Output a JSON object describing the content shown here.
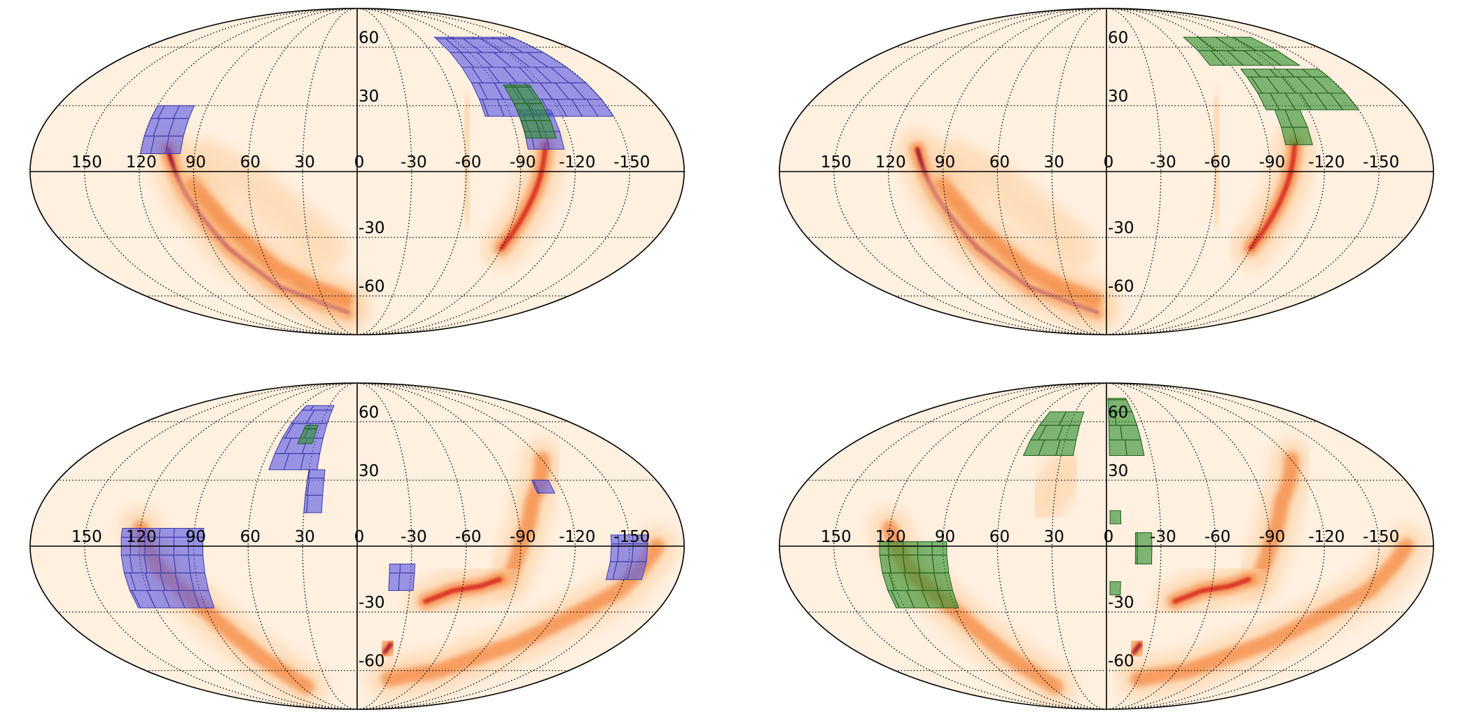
{
  "colors": {
    "background": "#fff0e0",
    "blue_tiles": "#5a5ae6",
    "green_tiles": "#2f8f2f",
    "heat_low": "#fdd0a2",
    "heat_mid": "#f16913",
    "heat_high": "#d7261e",
    "heat_peak": "#3b0a5c"
  },
  "projection": "mollweide",
  "longitude_direction": "increasing-left",
  "panels": [
    {
      "id": "top-left",
      "lon_labels": [
        "150",
        "120",
        "90",
        "60",
        "30",
        "0",
        "-30",
        "-60",
        "-90",
        "-120",
        "-150"
      ],
      "lat_labels": [
        "60",
        "30",
        "-30",
        "-60"
      ],
      "tile_sets": [
        {
          "color": "blue",
          "regions": [
            {
              "lon": [
                98,
                120
              ],
              "lat": [
                8,
                30
              ]
            },
            {
              "lon": [
                -75,
                -150
              ],
              "lat": [
                25,
                66
              ]
            },
            {
              "lon": [
                -95,
                -115
              ],
              "lat": [
                10,
                28
              ]
            }
          ]
        },
        {
          "color": "green",
          "regions": [
            {
              "lon": [
                -95,
                -112
              ],
              "lat": [
                15,
                40
              ]
            }
          ]
        }
      ],
      "heat_arcs": [
        {
          "points": [
            [
              105,
              10
            ],
            [
              95,
              -10
            ],
            [
              80,
              -35
            ],
            [
              60,
              -55
            ],
            [
              30,
              -65
            ],
            [
              10,
              -70
            ]
          ],
          "level": "peak"
        },
        {
          "points": [
            [
              90,
              -5
            ],
            [
              75,
              -25
            ],
            [
              55,
              -45
            ],
            [
              35,
              -55
            ],
            [
              10,
              -62
            ]
          ],
          "level": "mid"
        },
        {
          "points": [
            [
              85,
              5
            ],
            [
              60,
              -5
            ],
            [
              40,
              -20
            ],
            [
              20,
              -35
            ]
          ],
          "level": "low"
        },
        {
          "points": [
            [
              -105,
              12
            ],
            [
              -100,
              -5
            ],
            [
              -95,
              -20
            ],
            [
              -90,
              -35
            ]
          ],
          "level": "high"
        },
        {
          "points": [
            [
              -65,
              25
            ],
            [
              -60,
              5
            ],
            [
              -62,
              -15
            ]
          ],
          "level": "low"
        }
      ]
    },
    {
      "id": "top-right",
      "lon_labels": [
        "150",
        "120",
        "90",
        "60",
        "30",
        "0",
        "-30",
        "-60",
        "-90",
        "-120",
        "-150"
      ],
      "lat_labels": [
        "60",
        "30",
        "-30",
        "-60"
      ],
      "tile_sets": [
        {
          "color": "green",
          "regions": [
            {
              "lon": [
                -75,
                -140
              ],
              "lat": [
                50,
                66
              ]
            },
            {
              "lon": [
                -95,
                -150
              ],
              "lat": [
                28,
                48
              ]
            },
            {
              "lon": [
                -100,
                -115
              ],
              "lat": [
                12,
                28
              ]
            }
          ]
        }
      ],
      "heat_arcs": [
        {
          "points": [
            [
              105,
              10
            ],
            [
              95,
              -10
            ],
            [
              80,
              -35
            ],
            [
              60,
              -55
            ],
            [
              30,
              -65
            ],
            [
              10,
              -70
            ]
          ],
          "level": "peak"
        },
        {
          "points": [
            [
              90,
              -5
            ],
            [
              75,
              -25
            ],
            [
              55,
              -45
            ],
            [
              35,
              -55
            ],
            [
              10,
              -62
            ]
          ],
          "level": "mid"
        },
        {
          "points": [
            [
              85,
              5
            ],
            [
              60,
              -5
            ],
            [
              40,
              -20
            ],
            [
              20,
              -35
            ]
          ],
          "level": "low"
        },
        {
          "points": [
            [
              -105,
              12
            ],
            [
              -100,
              -5
            ],
            [
              -95,
              -20
            ],
            [
              -90,
              -35
            ]
          ],
          "level": "high"
        },
        {
          "points": [
            [
              -65,
              25
            ],
            [
              -60,
              5
            ],
            [
              -62,
              -15
            ]
          ],
          "level": "low"
        }
      ]
    },
    {
      "id": "bottom-left",
      "lon_labels": [
        "150",
        "120",
        "90",
        "60",
        "30",
        "0",
        "-30",
        "-60",
        "-90",
        "-120",
        "-150"
      ],
      "lat_labels": [
        "60",
        "30",
        "-30",
        "-60"
      ],
      "tile_sets": [
        {
          "color": "blue",
          "regions": [
            {
              "lon": [
                85,
                130
              ],
              "lat": [
                -28,
                8
              ]
            },
            {
              "lon": [
                25,
                55
              ],
              "lat": [
                35,
                70
              ]
            },
            {
              "lon": [
                20,
                30
              ],
              "lat": [
                15,
                35
              ]
            },
            {
              "lon": [
                -18,
                -32
              ],
              "lat": [
                -20,
                -8
              ]
            },
            {
              "lon": [
                -140,
                -160
              ],
              "lat": [
                -15,
                5
              ]
            },
            {
              "lon": [
                -105,
                -115
              ],
              "lat": [
                24,
                30
              ]
            }
          ]
        },
        {
          "color": "green",
          "regions": [
            {
              "lon": [
                32,
                42
              ],
              "lat": [
                48,
                58
              ]
            }
          ]
        }
      ],
      "heat_arcs": [
        {
          "points": [
            [
              120,
              8
            ],
            [
              110,
              -10
            ],
            [
              90,
              -30
            ],
            [
              70,
              -55
            ],
            [
              55,
              -70
            ]
          ],
          "level": "mid"
        },
        {
          "points": [
            [
              -20,
              -50
            ],
            [
              -23,
              -46
            ]
          ],
          "level": "peak"
        },
        {
          "points": [
            [
              -30,
              -65
            ],
            [
              -70,
              -60
            ],
            [
              -110,
              -45
            ],
            [
              -150,
              -20
            ],
            [
              -165,
              0
            ]
          ],
          "level": "mid"
        },
        {
          "points": [
            [
              -85,
              -15
            ],
            [
              -90,
              0
            ],
            [
              -100,
              20
            ],
            [
              -120,
              40
            ]
          ],
          "level": "mid"
        },
        {
          "points": [
            [
              -40,
              -25
            ],
            [
              -55,
              -20
            ],
            [
              -70,
              -18
            ],
            [
              -80,
              -15
            ]
          ],
          "level": "high"
        }
      ]
    },
    {
      "id": "bottom-right",
      "lon_labels": [
        "150",
        "120",
        "90",
        "60",
        "30",
        "0",
        "-30",
        "-60",
        "-90",
        "-120",
        "-150"
      ],
      "lat_labels": [
        "60",
        "30",
        "-30",
        "-60"
      ],
      "tile_sets": [
        {
          "color": "green",
          "regions": [
            {
              "lon": [
                88,
                125
              ],
              "lat": [
                -28,
                2
              ]
            },
            {
              "lon": [
                22,
                55
              ],
              "lat": [
                42,
                66
              ]
            },
            {
              "lon": [
                -2,
                -25
              ],
              "lat": [
                42,
                75
              ]
            },
            {
              "lon": [
                -2,
                -8
              ],
              "lat": [
                10,
                16
              ]
            },
            {
              "lon": [
                -16,
                -25
              ],
              "lat": [
                -8,
                6
              ]
            },
            {
              "lon": [
                -2,
                -8
              ],
              "lat": [
                -22,
                -16
              ]
            }
          ]
        }
      ],
      "heat_arcs": [
        {
          "points": [
            [
              120,
              8
            ],
            [
              110,
              -10
            ],
            [
              90,
              -30
            ],
            [
              70,
              -55
            ],
            [
              55,
              -70
            ]
          ],
          "level": "mid"
        },
        {
          "points": [
            [
              -20,
              -50
            ],
            [
              -23,
              -46
            ]
          ],
          "level": "peak"
        },
        {
          "points": [
            [
              -30,
              -65
            ],
            [
              -70,
              -60
            ],
            [
              -110,
              -45
            ],
            [
              -150,
              -20
            ],
            [
              -165,
              0
            ]
          ],
          "level": "mid"
        },
        {
          "points": [
            [
              -85,
              -15
            ],
            [
              -90,
              0
            ],
            [
              -100,
              20
            ],
            [
              -120,
              40
            ]
          ],
          "level": "mid"
        },
        {
          "points": [
            [
              -40,
              -25
            ],
            [
              -55,
              -20
            ],
            [
              -70,
              -18
            ],
            [
              -80,
              -15
            ]
          ],
          "level": "high"
        },
        {
          "points": [
            [
              25,
              35
            ],
            [
              35,
              20
            ]
          ],
          "level": "low"
        }
      ]
    }
  ]
}
